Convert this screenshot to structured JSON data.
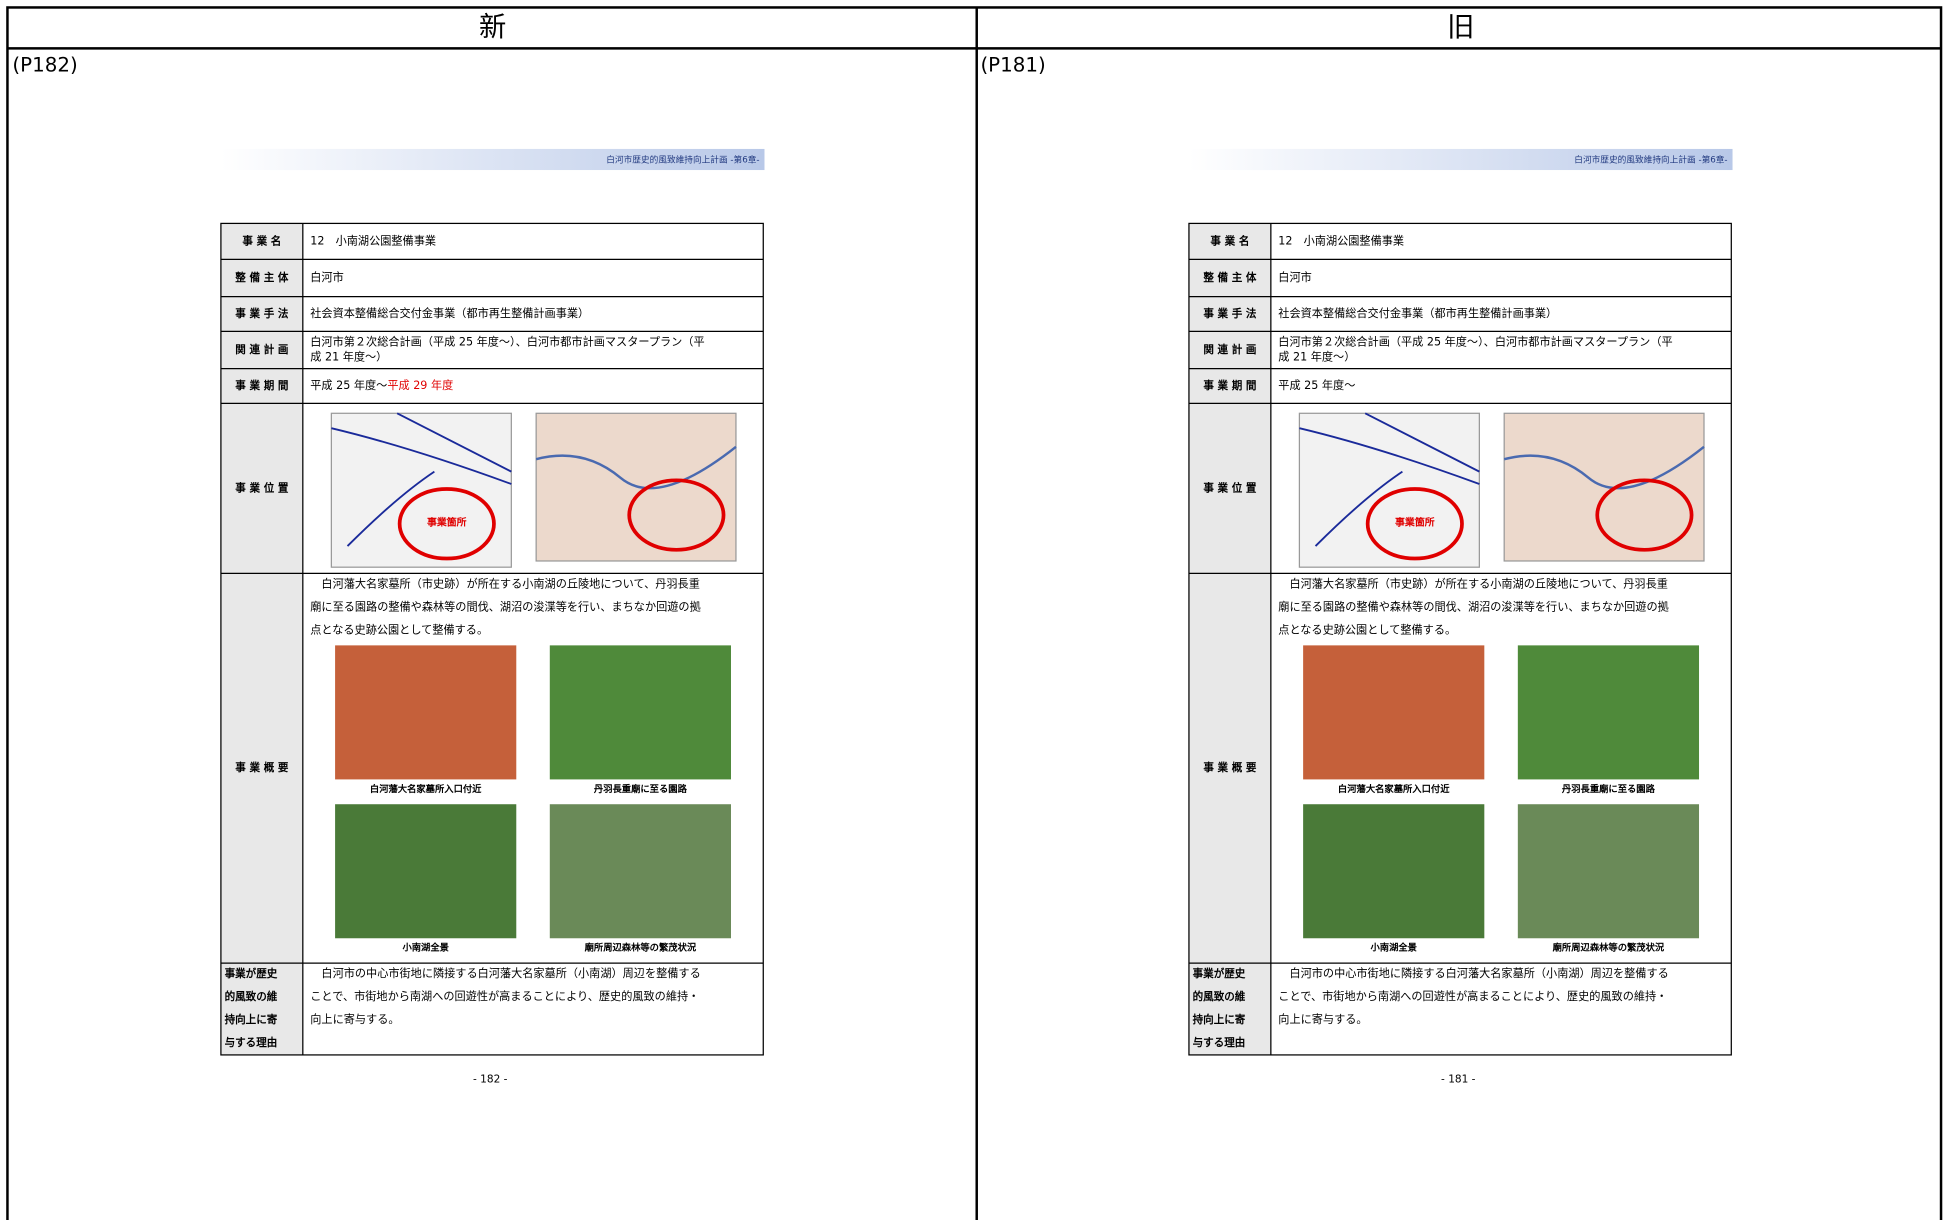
{
  "columns": [
    {
      "heading": "新",
      "page_ref": "(P182)",
      "running_header": "白河市歴史的風致維持向上計画 -第6章-",
      "page_number": "- 182 -",
      "rows": [
        {
          "label": "事 業 名",
          "value": "12　小南湖公園整備事業"
        },
        {
          "label": "整 備 主 体",
          "value": "白河市"
        },
        {
          "label": "事 業 手 法",
          "value": "社会資本整備総合交付金事業（都市再生整備計画事業）"
        },
        {
          "label": "関 連 計 画",
          "value_lines": [
            "白河市第２次総合計画（平成 25 年度～）、白河市都市計画マスタープラン（平",
            "成 21 年度～）"
          ]
        },
        {
          "label": "事 業 期 間",
          "value": "平成 25 年度～",
          "value_added": "平成 29 年度"
        },
        {
          "label": "事 業 位 置",
          "map_label": "事業箇所"
        },
        {
          "label": "事 業 概 要",
          "text_lines": [
            "　白河藩大名家墓所（市史跡）が所在する小南湖の丘陵地について、丹羽長重",
            "廟に至る園路の整備や森林等の間伐、湖沼の浚渫等を行い、まちなか回遊の拠",
            "点となる史跡公園として整備する。"
          ],
          "photos": [
            "白河藩大名家墓所入口付近",
            "丹羽長重廟に至る園路",
            "小南湖全景",
            "廟所周辺森林等の繁茂状況"
          ]
        },
        {
          "label_lines": [
            "事業が歴史",
            "的風致の維",
            "持向上に寄",
            "与する理由"
          ],
          "text_lines": [
            "　白河市の中心市街地に隣接する白河藩大名家墓所（小南湖）周辺を整備する",
            "ことで、市街地から南湖への回遊性が高まることにより、歴史的風致の維持・",
            "向上に寄与する。"
          ]
        }
      ]
    },
    {
      "heading": "旧",
      "page_ref": "(P181)",
      "running_header": "白河市歴史的風致維持向上計画 -第6章-",
      "page_number": "- 181 -",
      "rows": [
        {
          "label": "事 業 名",
          "value": "12　小南湖公園整備事業"
        },
        {
          "label": "整 備 主 体",
          "value": "白河市"
        },
        {
          "label": "事 業 手 法",
          "value": "社会資本整備総合交付金事業（都市再生整備計画事業）"
        },
        {
          "label": "関 連 計 画",
          "value_lines": [
            "白河市第２次総合計画（平成 25 年度～）、白河市都市計画マスタープラン（平",
            "成 21 年度～）"
          ]
        },
        {
          "label": "事 業 期 間",
          "value": "平成 25 年度～"
        },
        {
          "label": "事 業 位 置",
          "map_label": "事業箇所"
        },
        {
          "label": "事 業 概 要",
          "text_lines": [
            "　白河藩大名家墓所（市史跡）が所在する小南湖の丘陵地について、丹羽長重",
            "廟に至る園路の整備や森林等の間伐、湖沼の浚渫等を行い、まちなか回遊の拠",
            "点となる史跡公園として整備する。"
          ],
          "photos": [
            "白河藩大名家墓所入口付近",
            "丹羽長重廟に至る園路",
            "小南湖全景",
            "廟所周辺森林等の繁茂状況"
          ]
        },
        {
          "label_lines": [
            "事業が歴史",
            "的風致の維",
            "持向上に寄",
            "与する理由"
          ],
          "text_lines": [
            "　白河市の中心市街地に隣接する白河藩大名家墓所（小南湖）周辺を整備する",
            "ことで、市街地から南湖への回遊性が高まることにより、歴史的風致の維持・",
            "向上に寄与する。"
          ]
        }
      ]
    }
  ]
}
